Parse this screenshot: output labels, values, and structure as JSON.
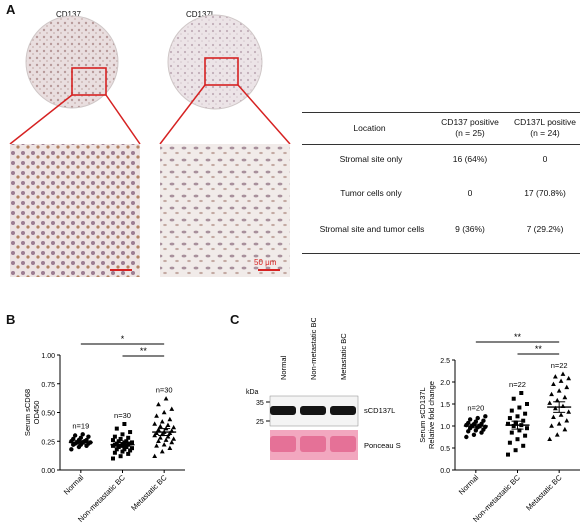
{
  "panel_a": {
    "label": "A",
    "img_left_title": "CD137",
    "img_right_title": "CD137L",
    "scale_bar": "50 μm",
    "table": {
      "header": [
        "Location",
        "CD137 positive\n(n = 25)",
        "CD137L positive\n(n = 24)"
      ],
      "rows": [
        [
          "Stromal site only",
          "16 (64%)",
          "0"
        ],
        [
          "Tumor cells only",
          "0",
          "17 (70.8%)"
        ],
        [
          "Stromal site and  tumor cells",
          "9 (36%)",
          "7 (29.2%)"
        ]
      ]
    }
  },
  "panel_b": {
    "label": "B",
    "sig_top": "*",
    "sig_bottom": "**"
  },
  "panel_c": {
    "label": "C",
    "blot": {
      "lanes": [
        "Normal",
        "Non-metastatic BC",
        "Metastatic BC"
      ],
      "kda_label": "kDa",
      "markers": [
        "35",
        "25"
      ],
      "band_labels": [
        "sCD137L",
        "Ponceau S"
      ],
      "colors": {
        "blot_bg": "#f4f4f4",
        "band": "#141414",
        "ponceau": "#f2a7bf",
        "ponceau_dark": "#e05a86"
      }
    },
    "sig_top": "**",
    "sig_bottom": "**"
  },
  "chart_data": [
    {
      "type": "scatter",
      "panel": "B",
      "categories": [
        "Normal",
        "Non-metastatic BC",
        "Metastatic BC"
      ],
      "n_labels": [
        "n=19",
        "n=30",
        "n=30"
      ],
      "ylabel": "Serum sCD68\nOD450",
      "ylim": [
        0,
        1.0
      ],
      "yticks": [
        "0.00",
        "0.25",
        "0.50",
        "0.75",
        "1.00"
      ],
      "means": [
        0.24,
        0.22,
        0.33
      ],
      "sems": [
        0.015,
        0.02,
        0.03
      ],
      "markers": [
        "circle",
        "square",
        "triangle"
      ],
      "points": [
        [
          0.18,
          0.2,
          0.21,
          0.22,
          0.22,
          0.23,
          0.23,
          0.24,
          0.24,
          0.24,
          0.25,
          0.25,
          0.26,
          0.26,
          0.27,
          0.28,
          0.29,
          0.3,
          0.31
        ],
        [
          0.1,
          0.12,
          0.14,
          0.15,
          0.16,
          0.17,
          0.18,
          0.18,
          0.19,
          0.2,
          0.2,
          0.21,
          0.21,
          0.22,
          0.22,
          0.22,
          0.23,
          0.23,
          0.24,
          0.24,
          0.25,
          0.25,
          0.26,
          0.27,
          0.28,
          0.29,
          0.31,
          0.33,
          0.36,
          0.4
        ],
        [
          0.12,
          0.16,
          0.19,
          0.21,
          0.22,
          0.24,
          0.25,
          0.26,
          0.27,
          0.28,
          0.29,
          0.3,
          0.31,
          0.32,
          0.32,
          0.33,
          0.34,
          0.35,
          0.36,
          0.37,
          0.38,
          0.39,
          0.4,
          0.42,
          0.44,
          0.47,
          0.5,
          0.53,
          0.57,
          0.62
        ]
      ]
    },
    {
      "type": "scatter",
      "panel": "C",
      "categories": [
        "Normal",
        "Non-metastatic BC",
        "Metastatic BC"
      ],
      "n_labels": [
        "n=20",
        "n=22",
        "n=22"
      ],
      "ylabel": "Serum sCD137L\nRelative fold change",
      "ylim": [
        0,
        2.5
      ],
      "yticks": [
        "0.0",
        "0.5",
        "1.0",
        "1.5",
        "2.0",
        "2.5"
      ],
      "means": [
        1.0,
        1.02,
        1.43
      ],
      "sems": [
        0.04,
        0.09,
        0.12
      ],
      "markers": [
        "circle",
        "square",
        "triangle"
      ],
      "points": [
        [
          0.75,
          0.8,
          0.85,
          0.88,
          0.9,
          0.92,
          0.95,
          0.97,
          0.98,
          1.0,
          1.0,
          1.02,
          1.04,
          1.05,
          1.07,
          1.1,
          1.12,
          1.15,
          1.18,
          1.22
        ],
        [
          0.35,
          0.45,
          0.55,
          0.62,
          0.7,
          0.78,
          0.85,
          0.9,
          0.95,
          1.0,
          1.02,
          1.05,
          1.08,
          1.12,
          1.18,
          1.22,
          1.28,
          1.35,
          1.42,
          1.5,
          1.62,
          1.75
        ],
        [
          0.7,
          0.8,
          0.92,
          1.0,
          1.05,
          1.12,
          1.2,
          1.25,
          1.32,
          1.4,
          1.45,
          1.52,
          1.58,
          1.65,
          1.72,
          1.8,
          1.88,
          1.95,
          2.02,
          2.08,
          2.12,
          2.18
        ]
      ]
    }
  ]
}
